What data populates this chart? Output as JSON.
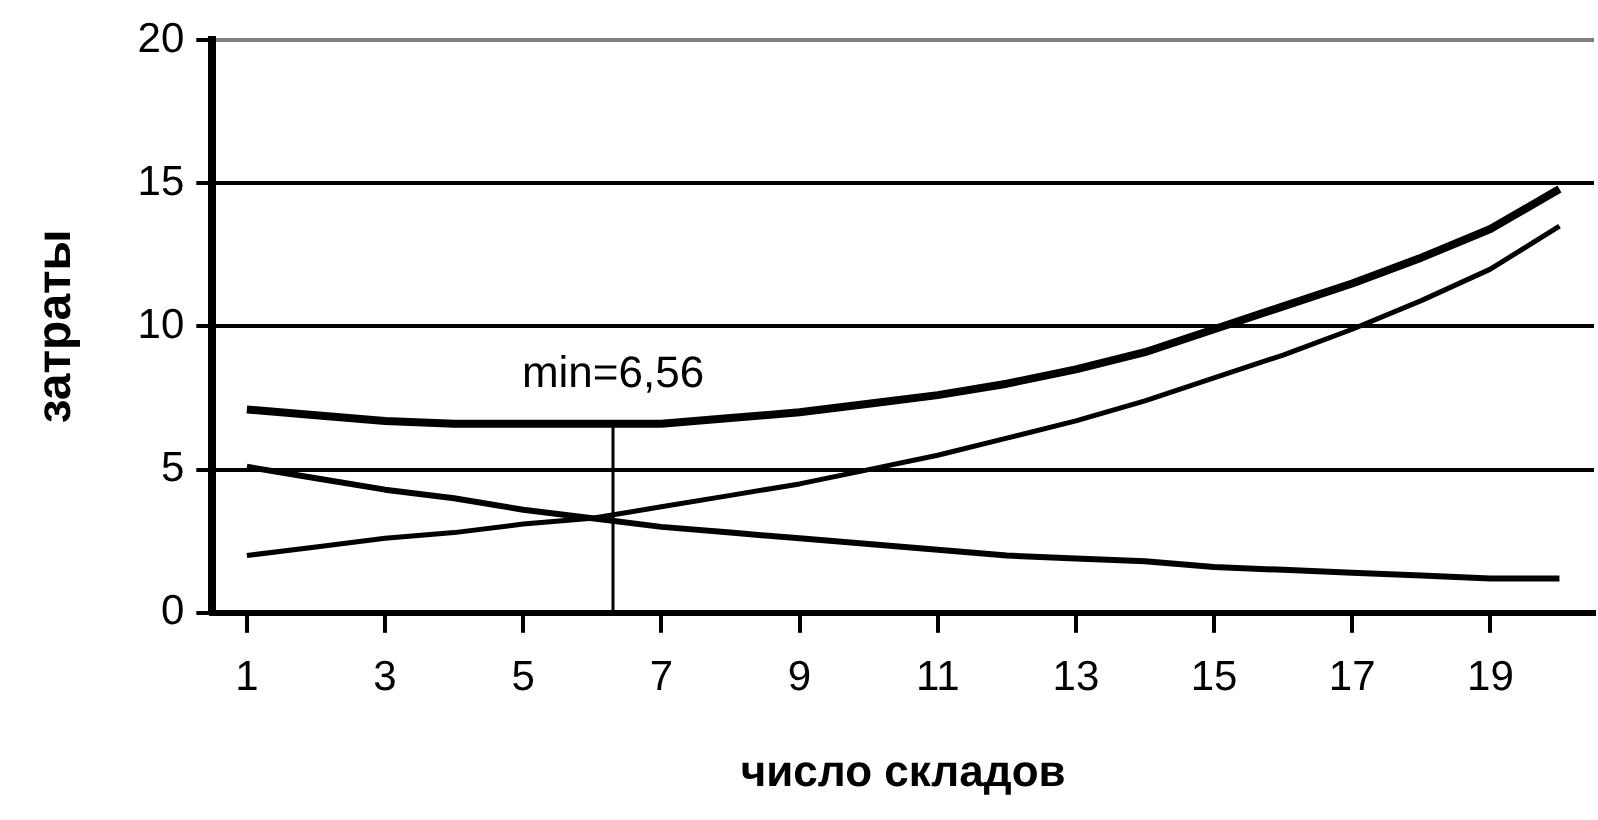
{
  "chart_data": {
    "type": "line",
    "xlabel": "число складов",
    "ylabel": "затраты",
    "x": [
      1,
      2,
      3,
      4,
      5,
      6,
      7,
      8,
      9,
      10,
      11,
      12,
      13,
      14,
      15,
      16,
      17,
      18,
      19,
      20
    ],
    "xlim": [
      0.5,
      20.5
    ],
    "xticks": [
      1,
      3,
      5,
      7,
      9,
      11,
      13,
      15,
      17,
      19
    ],
    "ylim": [
      0,
      20
    ],
    "yticks": [
      0,
      5,
      10,
      15,
      20
    ],
    "grid": "y",
    "legend": false,
    "marker": "none",
    "line_style": "solid",
    "series": [
      {
        "color": "#000000",
        "values": [
          7.1,
          6.9,
          6.7,
          6.6,
          6.6,
          6.6,
          6.6,
          6.8,
          7.0,
          7.3,
          7.6,
          8.0,
          8.5,
          9.1,
          9.9,
          10.7,
          11.5,
          12.4,
          13.4,
          14.8
        ]
      },
      {
        "color": "#000000",
        "values": [
          2.0,
          2.3,
          2.6,
          2.8,
          3.1,
          3.3,
          3.7,
          4.1,
          4.5,
          5.0,
          5.5,
          6.1,
          6.7,
          7.4,
          8.2,
          9.0,
          9.9,
          10.9,
          12.0,
          13.5
        ]
      },
      {
        "color": "#000000",
        "values": [
          5.1,
          4.7,
          4.3,
          4.0,
          3.6,
          3.3,
          3.0,
          2.8,
          2.6,
          2.4,
          2.2,
          2.0,
          1.9,
          1.8,
          1.6,
          1.5,
          1.4,
          1.3,
          1.2,
          1.2
        ]
      }
    ],
    "annotations": [
      {
        "text": "min=6,56",
        "x": 6.3,
        "y": 6.56
      }
    ]
  }
}
